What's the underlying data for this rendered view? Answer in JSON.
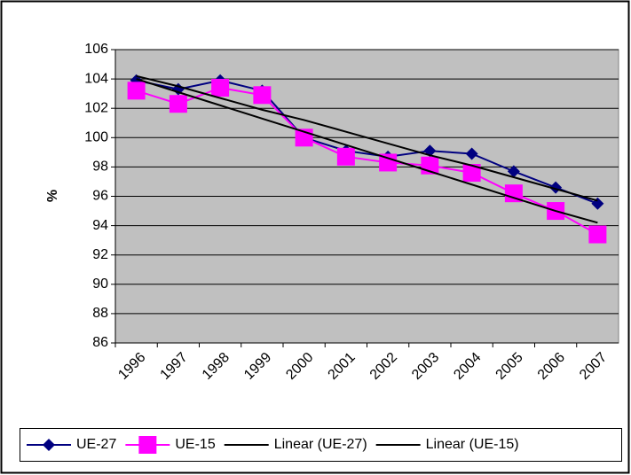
{
  "chart_data": {
    "type": "line",
    "ylabel": "%",
    "categories": [
      "1996",
      "1997",
      "1998",
      "1999",
      "2000",
      "2001",
      "2002",
      "2003",
      "2004",
      "2005",
      "2006",
      "2007"
    ],
    "ylim": [
      86,
      106
    ],
    "yticks": [
      86,
      88,
      90,
      92,
      94,
      96,
      98,
      100,
      102,
      104,
      106
    ],
    "grid": true,
    "legend": "bottom",
    "series": [
      {
        "name": "UE-27",
        "color": "#000080",
        "marker": "diamond",
        "values": [
          103.9,
          103.3,
          103.9,
          103.2,
          100.0,
          99.1,
          98.7,
          99.1,
          98.9,
          97.7,
          96.6,
          95.5
        ]
      },
      {
        "name": "UE-15",
        "color": "#ff00ff",
        "marker": "square",
        "values": [
          103.2,
          102.3,
          103.4,
          102.9,
          100.0,
          98.7,
          98.3,
          98.1,
          97.6,
          96.2,
          95.0,
          93.4
        ]
      },
      {
        "name": "Linear (UE-27)",
        "color": "#000000",
        "marker": "none",
        "values": [
          104.2,
          103.5,
          102.7,
          101.9,
          101.2,
          100.4,
          99.6,
          98.8,
          98.1,
          97.3,
          96.5,
          95.7
        ]
      },
      {
        "name": "Linear (UE-15)",
        "color": "#000000",
        "marker": "none",
        "values": [
          104.0,
          103.1,
          102.2,
          101.3,
          100.4,
          99.5,
          98.6,
          97.7,
          96.8,
          95.9,
          95.0,
          94.2
        ]
      }
    ]
  }
}
